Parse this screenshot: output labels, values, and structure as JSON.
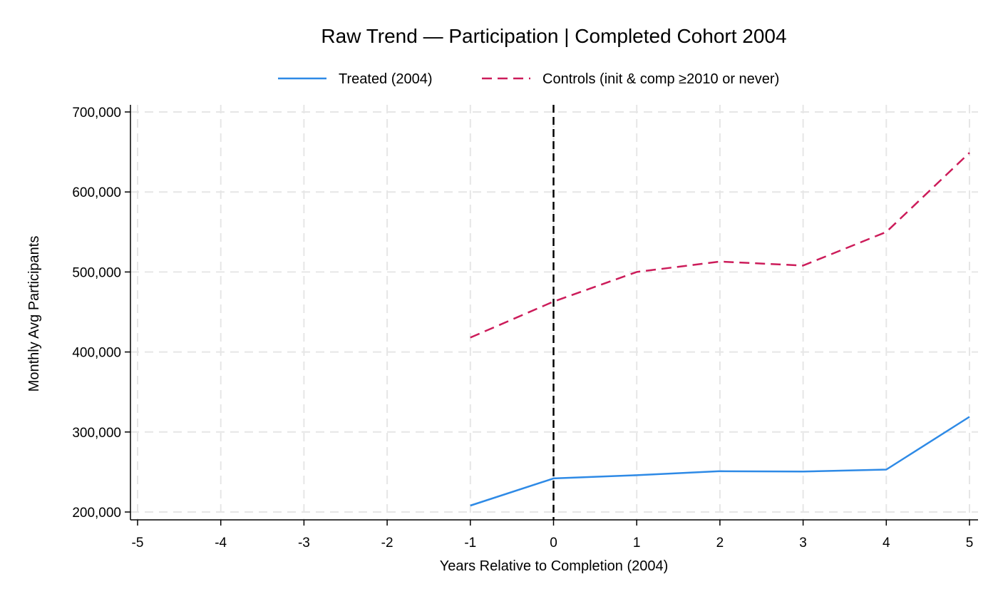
{
  "chart_data": {
    "type": "line",
    "title": "Raw Trend — Participation | Completed Cohort 2004",
    "xlabel": "Years Relative to Completion (2004)",
    "ylabel": "Monthly Avg Participants",
    "xlim": [
      -5,
      5
    ],
    "ylim": [
      200000,
      700000
    ],
    "x_ticks": [
      -5,
      -4,
      -3,
      -2,
      -1,
      0,
      1,
      2,
      3,
      4,
      5
    ],
    "y_ticks": [
      200000,
      300000,
      400000,
      500000,
      600000,
      700000
    ],
    "y_tick_labels": [
      "200,000",
      "300,000",
      "400,000",
      "500,000",
      "600,000",
      "700,000"
    ],
    "grid": true,
    "legend_position": "top",
    "reference_line": {
      "x": 0,
      "style": "dashed",
      "color": "#000000"
    },
    "series": [
      {
        "name": "Treated (2004)",
        "style": "solid",
        "color": "#2e8ae6",
        "x": [
          -1,
          0,
          1,
          2,
          3,
          4,
          5
        ],
        "values": [
          208000,
          242000,
          246000,
          251000,
          250500,
          253000,
          319000
        ]
      },
      {
        "name": "Controls (init & comp ≥2010 or never)",
        "style": "dashed",
        "color": "#cc1c5a",
        "x": [
          -1,
          0,
          1,
          2,
          3,
          4,
          5
        ],
        "values": [
          418000,
          463000,
          500000,
          513000,
          508000,
          550000,
          649000
        ]
      }
    ]
  }
}
